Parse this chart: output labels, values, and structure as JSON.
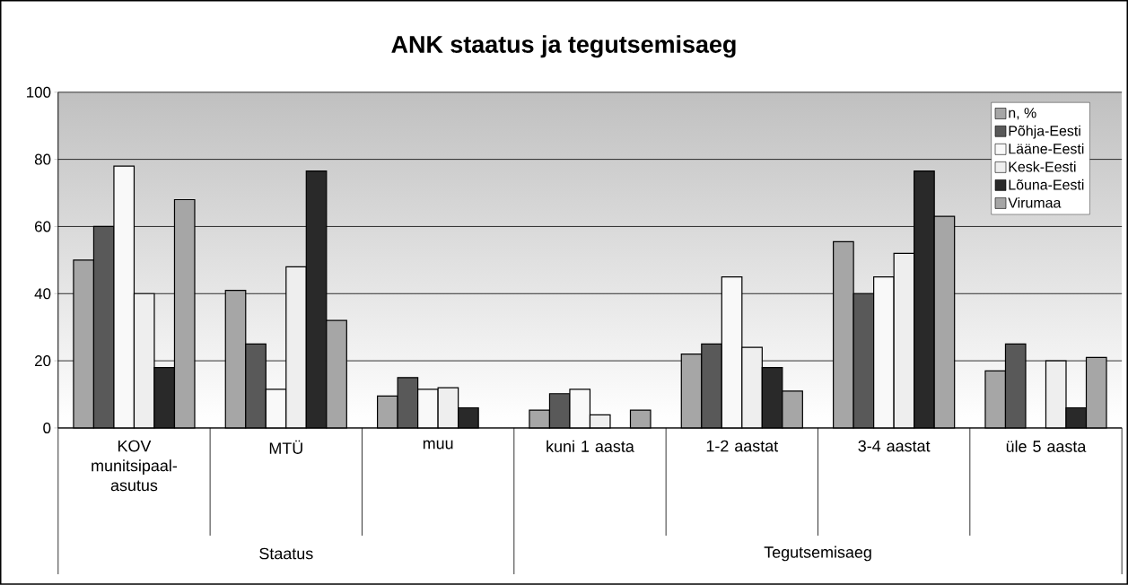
{
  "chart_data": {
    "type": "bar",
    "title": "ANK staatus ja tegutsemisaeg",
    "categories": [
      "KOV munitsipaal-asutus",
      "MTÜ",
      "muu",
      "kuni 1 aasta",
      "1-2 aastat",
      "3-4 aastat",
      "üle 5 aasta"
    ],
    "series": [
      {
        "name": "n, %",
        "color": "#a6a6a6",
        "values": [
          50,
          41,
          9.5,
          5.3,
          22,
          55.5,
          17
        ]
      },
      {
        "name": "Põhja-Eesti",
        "color": "#595959",
        "values": [
          60,
          25,
          15,
          10.2,
          25,
          40,
          25
        ]
      },
      {
        "name": "Lääne-Eesti",
        "color": "#f9f9f9",
        "values": [
          78,
          11.5,
          11.5,
          11.5,
          45,
          45,
          null
        ]
      },
      {
        "name": "Kesk-Eesti",
        "color": "#eeeeee",
        "values": [
          40,
          48,
          12,
          3.9,
          24,
          52,
          20
        ]
      },
      {
        "name": "Lõuna-Eesti",
        "color": "#292929",
        "values": [
          18,
          76.5,
          6,
          null,
          18,
          76.5,
          6
        ]
      },
      {
        "name": "Virumaa",
        "color": "#a6a6a6",
        "values": [
          68,
          32,
          null,
          5.3,
          11,
          63,
          21
        ]
      }
    ],
    "annotations": [
      "Staatus",
      "Tegutsemisaeg"
    ],
    "ylim": [
      0,
      100
    ],
    "yticks": [
      0,
      20,
      40,
      60,
      80,
      100
    ],
    "grid": "y",
    "legend": "top right"
  }
}
